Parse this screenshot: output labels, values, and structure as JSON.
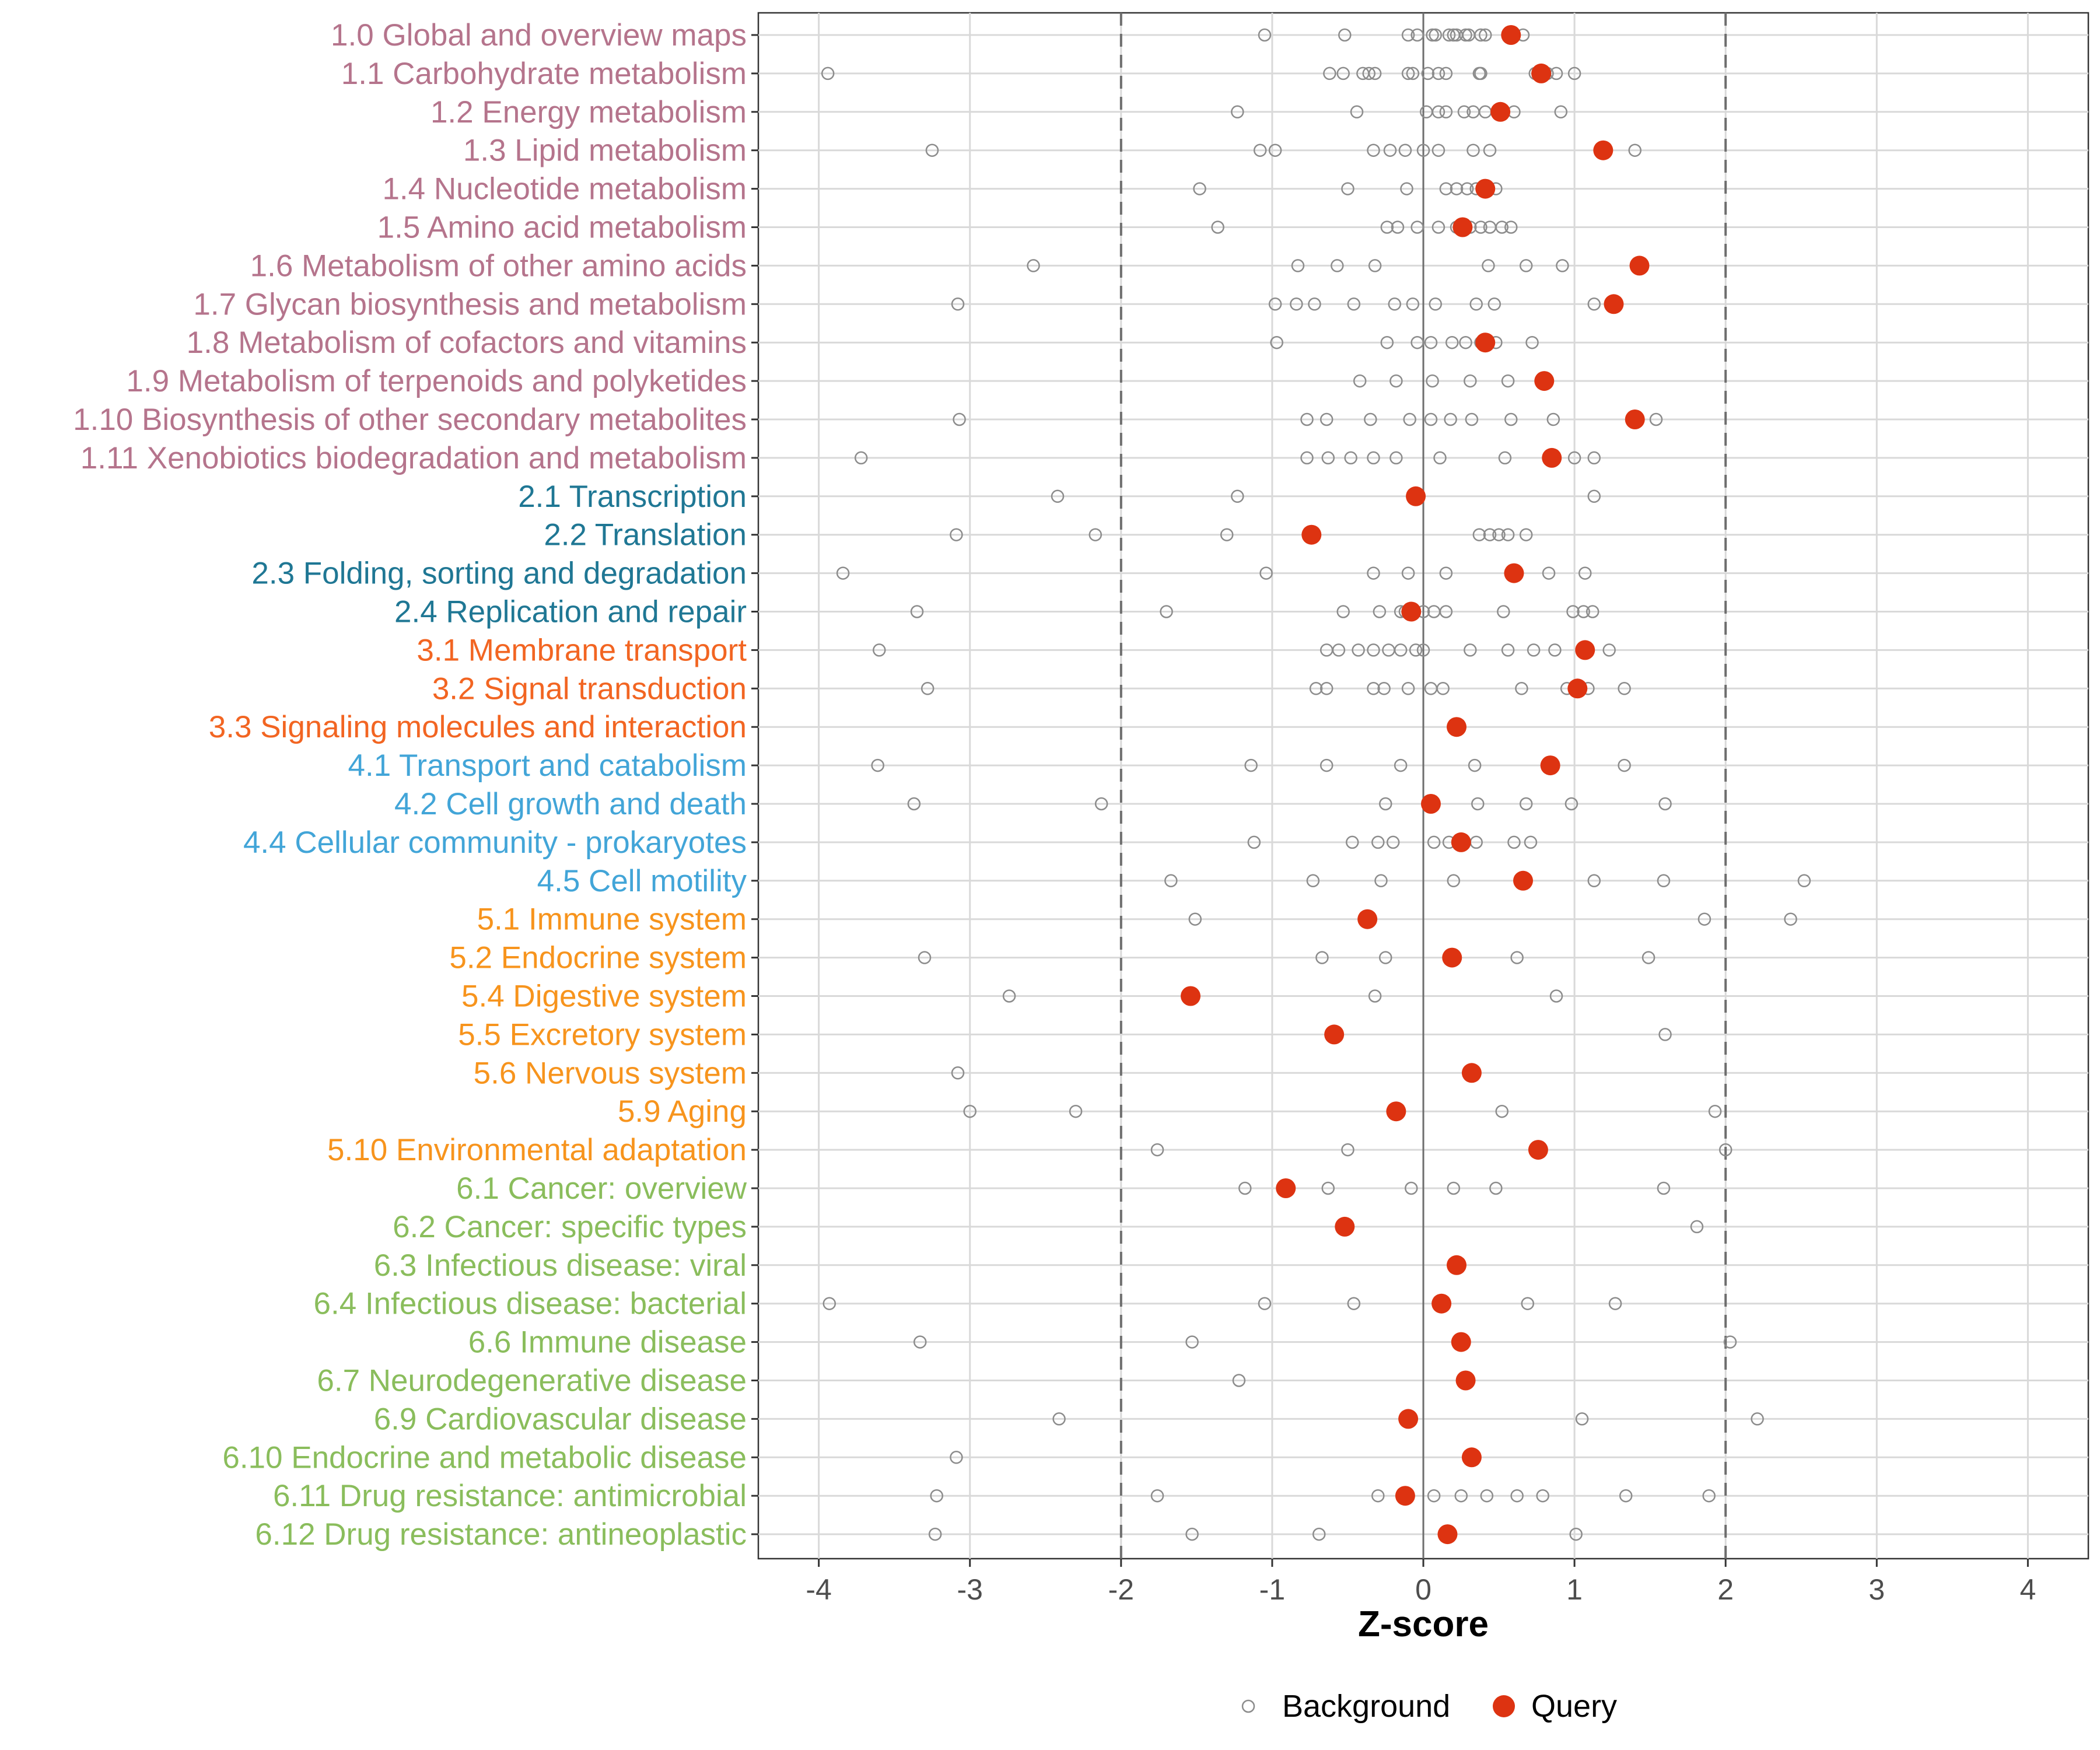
{
  "chart_data": {
    "type": "scatter",
    "xlabel": "Z-score",
    "ylabel": "",
    "xlim": [
      -4.4,
      4.4
    ],
    "x_ticks": [
      -4,
      -3,
      -2,
      -1,
      0,
      1,
      2,
      3,
      4
    ],
    "x_tick_labels": [
      "-4",
      "-3",
      "-2",
      "-1",
      "0",
      "1",
      "2",
      "3",
      "4"
    ],
    "threshold_lines": [
      -2,
      2
    ],
    "zero_line": 0,
    "legend": {
      "position": "bottom",
      "entries": [
        "Background",
        "Query"
      ]
    },
    "colors": {
      "metabolism": "#B5748C",
      "genetic": "#1F7794",
      "environmental": "#F26522",
      "cellular": "#42A5D8",
      "organismal": "#F7941D",
      "disease": "#8ABD5C",
      "query": "#DD3311",
      "background": "#8c8c8c",
      "grid": "#d9d9d9"
    },
    "categories": [
      {
        "label": "1.0 Global and overview maps",
        "group": "metabolism",
        "query": 0.58,
        "background": [
          -1.05,
          -0.52,
          -0.1,
          -0.04,
          0.06,
          0.08,
          0.17,
          0.2,
          0.22,
          0.28,
          0.3,
          0.38,
          0.41,
          0.66
        ]
      },
      {
        "label": "1.1 Carbohydrate metabolism",
        "group": "metabolism",
        "query": 0.78,
        "background": [
          -3.94,
          -0.62,
          -0.53,
          -0.4,
          -0.36,
          -0.32,
          -0.1,
          -0.07,
          0.03,
          0.1,
          0.15,
          0.37,
          0.38,
          0.74,
          0.82,
          0.88,
          1.0
        ]
      },
      {
        "label": "1.2 Energy metabolism",
        "group": "metabolism",
        "query": 0.51,
        "background": [
          -1.23,
          -0.44,
          0.02,
          0.1,
          0.15,
          0.27,
          0.33,
          0.41,
          0.6,
          0.91
        ]
      },
      {
        "label": "1.3 Lipid metabolism",
        "group": "metabolism",
        "query": 1.19,
        "background": [
          -3.25,
          -1.08,
          -0.98,
          -0.33,
          -0.22,
          -0.12,
          0.0,
          0.1,
          0.33,
          0.44,
          1.4
        ]
      },
      {
        "label": "1.4 Nucleotide metabolism",
        "group": "metabolism",
        "query": 0.41,
        "background": [
          -1.48,
          -0.5,
          -0.11,
          0.15,
          0.22,
          0.29,
          0.35,
          0.42,
          0.48
        ]
      },
      {
        "label": "1.5 Amino acid metabolism",
        "group": "metabolism",
        "query": 0.26,
        "background": [
          -1.36,
          -0.24,
          -0.17,
          -0.04,
          0.1,
          0.22,
          0.31,
          0.38,
          0.44,
          0.52,
          0.58
        ]
      },
      {
        "label": "1.6 Metabolism of other amino acids",
        "group": "metabolism",
        "query": 1.43,
        "background": [
          -2.58,
          -0.83,
          -0.57,
          -0.32,
          0.43,
          0.68,
          0.92
        ]
      },
      {
        "label": "1.7 Glycan biosynthesis and metabolism",
        "group": "metabolism",
        "query": 1.26,
        "background": [
          -3.08,
          -0.98,
          -0.84,
          -0.72,
          -0.46,
          -0.19,
          -0.07,
          0.08,
          0.35,
          0.47,
          1.13
        ]
      },
      {
        "label": "1.8 Metabolism of cofactors and vitamins",
        "group": "metabolism",
        "query": 0.41,
        "background": [
          -0.97,
          -0.24,
          -0.04,
          0.05,
          0.19,
          0.28,
          0.38,
          0.48,
          0.72
        ]
      },
      {
        "label": "1.9 Metabolism of terpenoids and polyketides",
        "group": "metabolism",
        "query": 0.8,
        "background": [
          -0.42,
          -0.18,
          0.06,
          0.31,
          0.56
        ]
      },
      {
        "label": "1.10 Biosynthesis of other secondary metabolites",
        "group": "metabolism",
        "query": 1.4,
        "background": [
          -3.07,
          -0.77,
          -0.64,
          -0.35,
          -0.09,
          0.05,
          0.18,
          0.32,
          0.58,
          0.86,
          1.54
        ]
      },
      {
        "label": "1.11 Xenobiotics biodegradation and metabolism",
        "group": "metabolism",
        "query": 0.85,
        "background": [
          -3.72,
          -0.77,
          -0.63,
          -0.48,
          -0.33,
          -0.18,
          0.11,
          0.54,
          1.0,
          1.13
        ]
      },
      {
        "label": "2.1 Transcription",
        "group": "genetic",
        "query": -0.05,
        "background": [
          -2.42,
          -1.23,
          1.13
        ]
      },
      {
        "label": "2.2 Translation",
        "group": "genetic",
        "query": -0.74,
        "background": [
          -3.09,
          -2.17,
          -1.3,
          0.37,
          0.44,
          0.5,
          0.56,
          0.68
        ]
      },
      {
        "label": "2.3 Folding, sorting and degradation",
        "group": "genetic",
        "query": 0.6,
        "background": [
          -3.84,
          -1.04,
          -0.33,
          -0.1,
          0.15,
          0.83,
          1.07
        ]
      },
      {
        "label": "2.4 Replication and repair",
        "group": "genetic",
        "query": -0.08,
        "background": [
          -3.35,
          -1.7,
          -0.53,
          -0.29,
          -0.15,
          -0.12,
          0.0,
          0.07,
          0.15,
          0.53,
          0.99,
          1.06,
          1.12
        ]
      },
      {
        "label": "3.1 Membrane transport",
        "group": "environmental",
        "query": 1.07,
        "background": [
          -3.6,
          -0.64,
          -0.56,
          -0.43,
          -0.33,
          -0.23,
          -0.15,
          -0.05,
          0.0,
          0.31,
          0.56,
          0.73,
          0.87,
          1.23
        ]
      },
      {
        "label": "3.2 Signal transduction",
        "group": "environmental",
        "query": 1.02,
        "background": [
          -3.28,
          -0.71,
          -0.64,
          -0.33,
          -0.26,
          -0.1,
          0.05,
          0.13,
          0.65,
          0.95,
          1.09,
          1.33
        ]
      },
      {
        "label": "3.3 Signaling molecules and interaction",
        "group": "environmental",
        "query": 0.22,
        "background": []
      },
      {
        "label": "4.1 Transport and catabolism",
        "group": "cellular",
        "query": 0.84,
        "background": [
          -3.61,
          -1.14,
          -0.64,
          -0.15,
          0.34,
          1.33
        ]
      },
      {
        "label": "4.2 Cell growth and death",
        "group": "cellular",
        "query": 0.05,
        "background": [
          -3.37,
          -2.13,
          -0.25,
          0.36,
          0.68,
          0.98,
          1.6
        ]
      },
      {
        "label": "4.4 Cellular community - prokaryotes",
        "group": "cellular",
        "query": 0.25,
        "background": [
          -1.12,
          -0.47,
          -0.3,
          -0.2,
          0.07,
          0.17,
          0.35,
          0.6,
          0.71
        ]
      },
      {
        "label": "4.5 Cell motility",
        "group": "cellular",
        "query": 0.66,
        "background": [
          -1.67,
          -0.73,
          -0.28,
          0.2,
          1.13,
          1.59,
          2.52
        ]
      },
      {
        "label": "5.1 Immune system",
        "group": "organismal",
        "query": -0.37,
        "background": [
          -1.51,
          1.86,
          2.43
        ]
      },
      {
        "label": "5.2 Endocrine system",
        "group": "organismal",
        "query": 0.19,
        "background": [
          -3.3,
          -0.67,
          -0.25,
          0.62,
          1.49
        ]
      },
      {
        "label": "5.4 Digestive system",
        "group": "organismal",
        "query": -1.54,
        "background": [
          -2.74,
          -0.32,
          0.88
        ]
      },
      {
        "label": "5.5 Excretory system",
        "group": "organismal",
        "query": -0.59,
        "background": [
          1.6
        ]
      },
      {
        "label": "5.6 Nervous system",
        "group": "organismal",
        "query": 0.32,
        "background": [
          -3.08
        ]
      },
      {
        "label": "5.9 Aging",
        "group": "organismal",
        "query": -0.18,
        "background": [
          -3.0,
          -2.3,
          0.52,
          1.93
        ]
      },
      {
        "label": "5.10 Environmental adaptation",
        "group": "organismal",
        "query": 0.76,
        "background": [
          -1.76,
          -0.5,
          2.0
        ]
      },
      {
        "label": "6.1 Cancer: overview",
        "group": "disease",
        "query": -0.91,
        "background": [
          -1.18,
          -0.63,
          -0.08,
          0.2,
          0.48,
          1.59
        ]
      },
      {
        "label": "6.2 Cancer: specific types",
        "group": "disease",
        "query": -0.52,
        "background": [
          1.81
        ]
      },
      {
        "label": "6.3 Infectious disease: viral",
        "group": "disease",
        "query": 0.22,
        "background": []
      },
      {
        "label": "6.4 Infectious disease: bacterial",
        "group": "disease",
        "query": 0.12,
        "background": [
          -3.93,
          -1.05,
          -0.46,
          0.69,
          1.27
        ]
      },
      {
        "label": "6.6 Immune disease",
        "group": "disease",
        "query": 0.25,
        "background": [
          -3.33,
          -1.53,
          2.03
        ]
      },
      {
        "label": "6.7 Neurodegenerative disease",
        "group": "disease",
        "query": 0.28,
        "background": [
          -1.22
        ]
      },
      {
        "label": "6.9 Cardiovascular disease",
        "group": "disease",
        "query": -0.1,
        "background": [
          -2.41,
          1.05,
          2.21
        ]
      },
      {
        "label": "6.10 Endocrine and metabolic disease",
        "group": "disease",
        "query": 0.32,
        "background": [
          -3.09
        ]
      },
      {
        "label": "6.11 Drug resistance: antimicrobial",
        "group": "disease",
        "query": -0.12,
        "background": [
          -3.22,
          -1.76,
          -0.3,
          0.07,
          0.25,
          0.42,
          0.62,
          0.79,
          1.34,
          1.89
        ]
      },
      {
        "label": "6.12 Drug resistance: antineoplastic",
        "group": "disease",
        "query": 0.16,
        "background": [
          -3.23,
          -1.53,
          -0.69,
          1.01
        ]
      }
    ]
  }
}
